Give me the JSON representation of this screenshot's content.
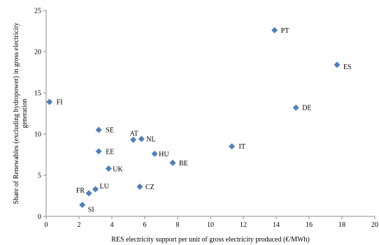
{
  "chart_data": {
    "type": "scatter",
    "title": "",
    "xlabel": "RES electricity support per unit of gross electricity produced (€/MWh)",
    "ylabel_lines": [
      "Share of Renewables (excluding hydropower) in gross electricity",
      "generation"
    ],
    "xlim": [
      0,
      20
    ],
    "ylim": [
      0,
      25
    ],
    "xticks": [
      "0",
      "2",
      "4",
      "6",
      "8",
      "10",
      "12",
      "14",
      "16",
      "18",
      "20"
    ],
    "yticks": [
      "0",
      "5",
      "10",
      "15",
      "20",
      "25"
    ],
    "grid": false,
    "legend": "none",
    "marker": "diamond",
    "marker_color": "#4F81BD",
    "points": [
      {
        "label": "FI",
        "x": 0.2,
        "y": 13.9
      },
      {
        "label": "SI",
        "x": 2.2,
        "y": 1.4
      },
      {
        "label": "FR",
        "x": 2.6,
        "y": 2.8
      },
      {
        "label": "LU",
        "x": 3.0,
        "y": 3.3
      },
      {
        "label": "SE",
        "x": 3.2,
        "y": 10.5
      },
      {
        "label": "EE",
        "x": 3.2,
        "y": 7.9
      },
      {
        "label": "UK",
        "x": 3.8,
        "y": 5.8
      },
      {
        "label": "AT",
        "x": 5.3,
        "y": 9.3
      },
      {
        "label": "NL",
        "x": 5.8,
        "y": 9.4
      },
      {
        "label": "CZ",
        "x": 5.7,
        "y": 3.6
      },
      {
        "label": "HU",
        "x": 6.6,
        "y": 7.6
      },
      {
        "label": "BE",
        "x": 7.7,
        "y": 6.5
      },
      {
        "label": "IT",
        "x": 11.3,
        "y": 8.5
      },
      {
        "label": "PT",
        "x": 13.9,
        "y": 22.6
      },
      {
        "label": "DE",
        "x": 15.2,
        "y": 13.2
      },
      {
        "label": "ES",
        "x": 17.7,
        "y": 18.4
      }
    ]
  }
}
